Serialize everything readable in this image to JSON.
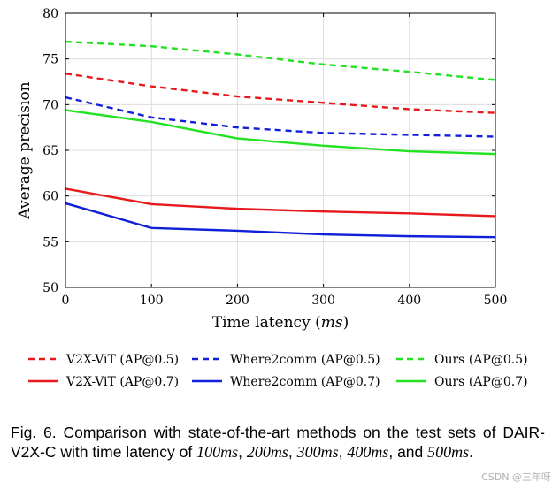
{
  "chart_data": {
    "type": "line",
    "xlabel": "Time latency (ms)",
    "xlabel_text": "Time latency (",
    "xlabel_unit": "ms",
    "xlabel_close": ")",
    "ylabel": "Average precision",
    "xlim": [
      0,
      500
    ],
    "ylim": [
      50,
      80
    ],
    "xticks": [
      0,
      100,
      200,
      300,
      400,
      500
    ],
    "yticks": [
      50,
      55,
      60,
      65,
      70,
      75,
      80
    ],
    "grid": true,
    "x": [
      0,
      100,
      200,
      300,
      400,
      500
    ],
    "series": [
      {
        "name": "V2X-ViT (AP@0.5)",
        "color": "#e8191d",
        "dash": true,
        "values": [
          73.4,
          72.0,
          70.9,
          70.2,
          69.5,
          69.1
        ]
      },
      {
        "name": "Where2comm (AP@0.5)",
        "color": "#1020d8",
        "dash": true,
        "values": [
          70.8,
          68.6,
          67.5,
          66.9,
          66.7,
          66.5
        ]
      },
      {
        "name": "Ours (AP@0.5)",
        "color": "#22e222",
        "dash": true,
        "values": [
          76.9,
          76.4,
          75.5,
          74.4,
          73.6,
          72.7
        ]
      },
      {
        "name": "V2X-ViT (AP@0.7)",
        "color": "#e8191d",
        "dash": false,
        "values": [
          60.8,
          59.1,
          58.6,
          58.3,
          58.1,
          57.8
        ]
      },
      {
        "name": "Where2comm (AP@0.7)",
        "color": "#1020d8",
        "dash": false,
        "values": [
          59.2,
          56.5,
          56.2,
          55.8,
          55.6,
          55.5
        ]
      },
      {
        "name": "Ours (AP@0.7)",
        "color": "#22e222",
        "dash": false,
        "values": [
          69.4,
          68.1,
          66.3,
          65.5,
          64.9,
          64.6
        ]
      }
    ]
  },
  "caption": {
    "prefix": "Fig. 6. Comparison with state-of-the-art methods on the test sets of DAIR-V2X-C with time latency of ",
    "t1": "100ms",
    "sep1": ", ",
    "t2": "200ms",
    "sep2": ", ",
    "t3": "300ms",
    "sep3": ", ",
    "t4": "400ms",
    "sep4": ", and ",
    "t5": "500ms",
    "end": "."
  },
  "watermark": "CSDN @三年呀"
}
